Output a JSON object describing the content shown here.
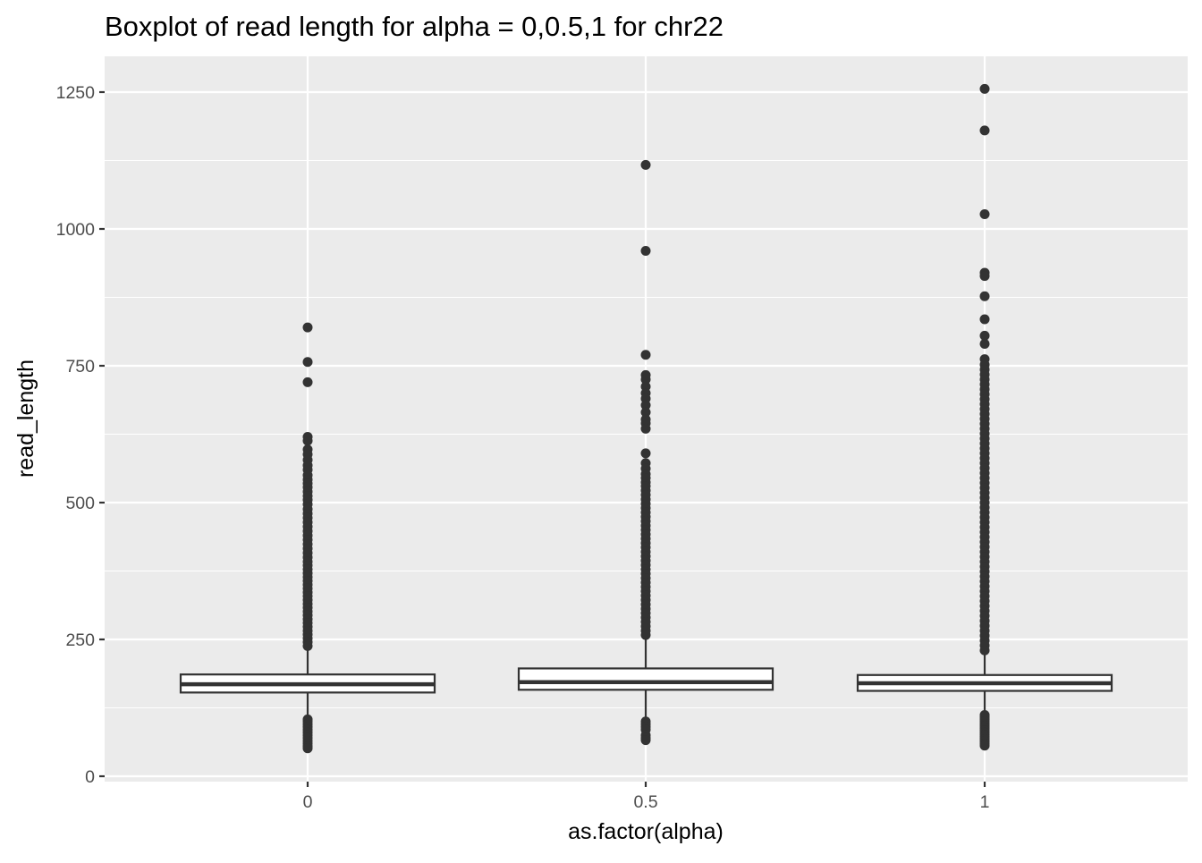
{
  "chart_data": {
    "type": "boxplot",
    "title": "Boxplot of read length for alpha = 0,0.5,1 for chr22",
    "xlabel": "as.factor(alpha)",
    "ylabel": "read_length",
    "categories": [
      "0",
      "0.5",
      "1"
    ],
    "y_ticks": [
      0,
      250,
      500,
      750,
      1000,
      1250
    ],
    "ylim": [
      -10,
      1322
    ],
    "grid": true,
    "colors": {
      "panel": "#ebebeb",
      "grid": "#ffffff",
      "box_fill": "#ffffff",
      "box_line": "#333333",
      "outlier": "#333333",
      "axis_text": "#4d4d4d",
      "title": "#000000"
    },
    "boxes": [
      {
        "category": "0",
        "q1": 153,
        "median": 168,
        "q3": 186,
        "whisker_low": 110,
        "whisker_high": 234,
        "outliers": [
          820,
          757,
          720,
          620,
          613,
          597,
          588,
          578,
          568,
          560,
          550,
          542,
          535,
          528,
          520,
          512,
          505,
          497,
          488,
          480,
          472,
          464,
          456,
          448,
          440,
          432,
          424,
          416,
          408,
          400,
          392,
          385,
          378,
          371,
          364,
          357,
          350,
          343,
          336,
          329,
          322,
          315,
          308,
          301,
          294,
          287,
          280,
          273,
          266,
          259,
          252,
          245,
          238,
          104,
          100,
          95,
          90,
          85,
          80,
          75,
          70,
          65,
          60,
          55,
          51
        ]
      },
      {
        "category": "0.5",
        "q1": 158,
        "median": 172,
        "q3": 197,
        "whisker_low": 105,
        "whisker_high": 255,
        "outliers": [
          1117,
          960,
          770,
          733,
          725,
          712,
          700,
          690,
          678,
          665,
          652,
          645,
          635,
          590,
          572,
          562,
          552,
          545,
          537,
          530,
          522,
          514,
          506,
          498,
          490,
          482,
          474,
          466,
          458,
          450,
          442,
          434,
          426,
          418,
          410,
          402,
          394,
          386,
          378,
          370,
          362,
          354,
          346,
          338,
          330,
          322,
          314,
          306,
          298,
          290,
          282,
          274,
          266,
          258,
          100,
          95,
          90,
          85,
          75,
          70,
          66
        ]
      },
      {
        "category": "1",
        "q1": 156,
        "median": 170,
        "q3": 185,
        "whisker_low": 114,
        "whisker_high": 228,
        "outliers": [
          1256,
          1180,
          1027,
          920,
          914,
          877,
          835,
          805,
          790,
          762,
          752,
          743,
          734,
          725,
          716,
          707,
          698,
          689,
          680,
          671,
          662,
          653,
          644,
          635,
          626,
          617,
          608,
          599,
          590,
          581,
          572,
          563,
          554,
          545,
          536,
          527,
          518,
          509,
          500,
          491,
          482,
          473,
          464,
          455,
          446,
          437,
          428,
          419,
          410,
          401,
          392,
          383,
          374,
          365,
          356,
          347,
          338,
          329,
          320,
          311,
          302,
          293,
          284,
          275,
          266,
          257,
          248,
          239,
          230,
          112,
          108,
          104,
          100,
          96,
          92,
          88,
          84,
          80,
          76,
          72,
          68,
          64,
          60,
          56
        ]
      }
    ]
  }
}
